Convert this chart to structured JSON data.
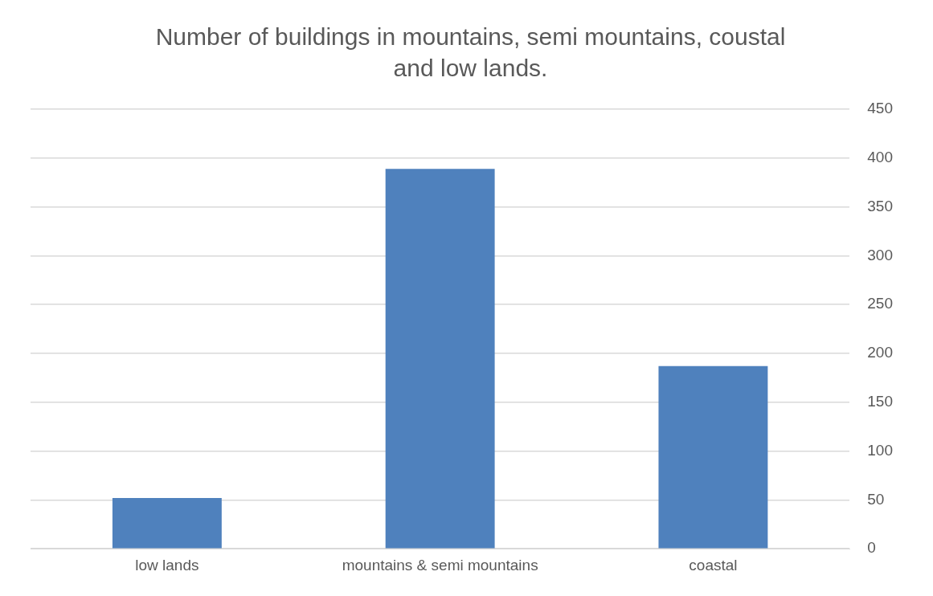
{
  "chart_data": {
    "type": "bar",
    "title": "Number of buildings in mountains, semi mountains, coustal and low lands.",
    "categories": [
      "low lands",
      "mountains & semi mountains",
      "coastal"
    ],
    "values": [
      52,
      389,
      187
    ],
    "color": "#4f81bd",
    "ylim": [
      0,
      450
    ],
    "yticks": [
      0,
      50,
      100,
      150,
      200,
      250,
      300,
      350,
      400,
      450
    ],
    "grid": "y",
    "legend": false
  }
}
